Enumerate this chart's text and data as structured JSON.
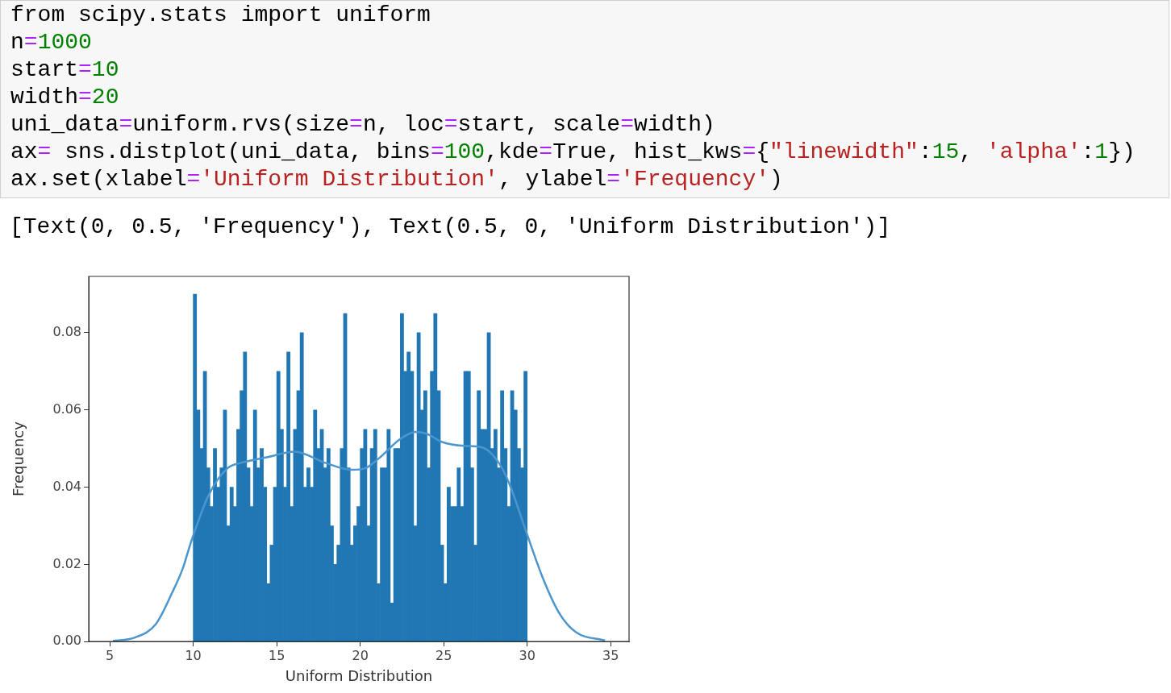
{
  "chart_data": {
    "type": "histogram",
    "xlabel": "Uniform Distribution",
    "ylabel": "Frequency",
    "annotations": [
      "from scipy.stats import uniform",
      "n=1000",
      "start=10",
      "width=20",
      "uni_data=uniform.rvs(size=n, loc=start, scale=width)",
      "ax= sns.distplot(uni_data, bins=100,kde=True, hist_kws={\"linewidth\":15, 'alpha':1})",
      "ax.set(xlabel='Uniform Distribution', ylabel='Frequency')",
      "[Text(0, 0.5, 'Frequency'), Text(0.5, 0, 'Uniform Distribution')]"
    ],
    "xlim": [
      3.74,
      36.1
    ],
    "ylim": [
      0,
      0.0946
    ],
    "xticks": [
      5,
      10,
      15,
      20,
      25,
      30,
      35
    ],
    "yticks": [
      {
        "value": 0,
        "label": "0.00"
      },
      {
        "value": 0.02,
        "label": "0.02"
      },
      {
        "value": 0.04,
        "label": "0.04"
      },
      {
        "value": 0.06,
        "label": "0.06"
      },
      {
        "value": 0.08,
        "label": "0.08"
      }
    ],
    "grid": false,
    "series": [
      {
        "type": "histogram",
        "color": "#2077b4",
        "bins": [
          10,
          10.2,
          10.4,
          10.6,
          10.8,
          11,
          11.2,
          11.4,
          11.6,
          11.8,
          12,
          12.2,
          12.4,
          12.6,
          12.8,
          13,
          13.2,
          13.4,
          13.6,
          13.8,
          14,
          14.2,
          14.4,
          14.6,
          14.8,
          15,
          15.2,
          15.4,
          15.6,
          15.8,
          16,
          16.2,
          16.4,
          16.6,
          16.8,
          17,
          17.2,
          17.4,
          17.6,
          17.8,
          18,
          18.2,
          18.4,
          18.6,
          18.8,
          19,
          19.2,
          19.4,
          19.6,
          19.8,
          20,
          20.2,
          20.4,
          20.6,
          20.8,
          21,
          21.2,
          21.4,
          21.6,
          21.8,
          22,
          22.2,
          22.4,
          22.6,
          22.8,
          23,
          23.2,
          23.4,
          23.6,
          23.8,
          24,
          24.2,
          24.4,
          24.6,
          24.8,
          25,
          25.2,
          25.4,
          25.6,
          25.8,
          26,
          26.2,
          26.4,
          26.6,
          26.8,
          27,
          27.2,
          27.4,
          27.6,
          27.8,
          28,
          28.2,
          28.4,
          28.6,
          28.8,
          29,
          29.2,
          29.4,
          29.6,
          29.8,
          30
        ],
        "values": [
          0.09,
          0.06,
          0.05,
          0.07,
          0.045,
          0.035,
          0.05,
          0.04,
          0.045,
          0.06,
          0.03,
          0.04,
          0.035,
          0.055,
          0.065,
          0.075,
          0.045,
          0.035,
          0.06,
          0.045,
          0.05,
          0.04,
          0.015,
          0.025,
          0.04,
          0.07,
          0.055,
          0.04,
          0.075,
          0.035,
          0.055,
          0.065,
          0.08,
          0.04,
          0.045,
          0.04,
          0.06,
          0.05,
          0.055,
          0.045,
          0.05,
          0.03,
          0.02,
          0.025,
          0.05,
          0.085,
          0.045,
          0.025,
          0.03,
          0.035,
          0.05,
          0.055,
          0.03,
          0.05,
          0.055,
          0.015,
          0.045,
          0.045,
          0.055,
          0.01,
          0.05,
          0.05,
          0.085,
          0.07,
          0.075,
          0.07,
          0.03,
          0.08,
          0.06,
          0.065,
          0.045,
          0.07,
          0.085,
          0.065,
          0.025,
          0.015,
          0.04,
          0.035,
          0.035,
          0.045,
          0.035,
          0.07,
          0.07,
          0.045,
          0.025,
          0.065,
          0.055,
          0.055,
          0.08,
          0.05,
          0.055,
          0.045,
          0.065,
          0.05,
          0.035,
          0.065,
          0.06,
          0.05,
          0.045,
          0.07
        ]
      },
      {
        "type": "line",
        "color": "#4c96cf",
        "x": [
          5.19,
          6.48,
          7.77,
          8.73,
          9.38,
          9.86,
          10.93,
          12.05,
          12.86,
          14.47,
          16.08,
          17.9,
          19.5,
          20.3,
          21.1,
          22.4,
          23.3,
          23.94,
          24.9,
          26.2,
          27.3,
          28.3,
          28.9,
          29.99,
          30.96,
          31.9,
          32.9,
          34.66
        ],
        "values": [
          0.0002,
          0.001,
          0.0046,
          0.0126,
          0.019,
          0.0257,
          0.038,
          0.0449,
          0.0463,
          0.0478,
          0.0492,
          0.0463,
          0.0445,
          0.0449,
          0.0474,
          0.0525,
          0.0543,
          0.0539,
          0.0517,
          0.0507,
          0.0503,
          0.0463,
          0.0412,
          0.0278,
          0.0162,
          0.0075,
          0.0025,
          0.0003
        ]
      }
    ]
  }
}
